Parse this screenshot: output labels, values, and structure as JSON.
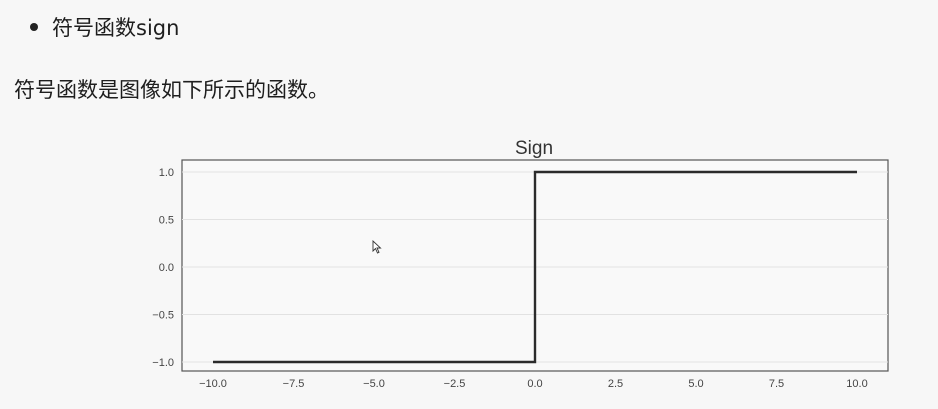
{
  "bullet": {
    "text": "符号函数sign"
  },
  "paragraph": {
    "text": "符号函数是图像如下所示的函数。"
  },
  "chart_data": {
    "type": "line",
    "title": "Sign",
    "xlabel": "",
    "ylabel": "",
    "xlim": [
      -10.0,
      10.0
    ],
    "ylim": [
      -1.0,
      1.0
    ],
    "xticks": [
      -10.0,
      -7.5,
      -5.0,
      -2.5,
      0.0,
      2.5,
      5.0,
      7.5,
      10.0
    ],
    "xtick_labels": [
      "−10.0",
      "−7.5",
      "−5.0",
      "−2.5",
      "0.0",
      "2.5",
      "5.0",
      "7.5",
      "10.0"
    ],
    "yticks": [
      -1.0,
      -0.5,
      0.0,
      0.5,
      1.0
    ],
    "ytick_labels": [
      "−1.0",
      "−0.5",
      "0.0",
      "0.5",
      "1.0"
    ],
    "grid": true,
    "series": [
      {
        "x": [
          -10.0,
          0.0,
          0.0,
          10.0
        ],
        "y": [
          -1.0,
          -1.0,
          1.0,
          1.0
        ],
        "color": "#2b2b2b"
      }
    ]
  }
}
